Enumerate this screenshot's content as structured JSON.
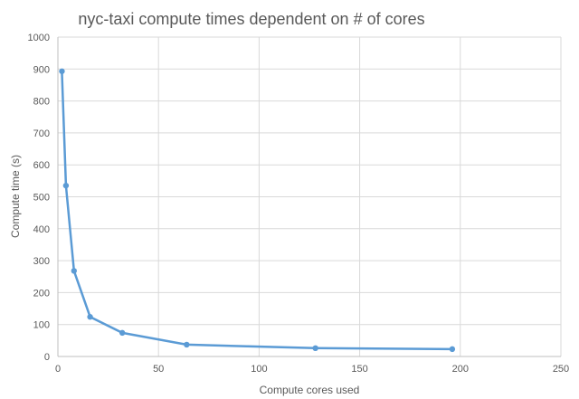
{
  "chart_data": {
    "type": "scatter",
    "title": "nyc-taxi compute times dependent on # of cores",
    "xlabel": "Compute cores used",
    "ylabel": "Compute time (s)",
    "xlim": [
      0,
      250
    ],
    "ylim": [
      0,
      1000
    ],
    "xticks": [
      0,
      50,
      100,
      150,
      200,
      250
    ],
    "yticks": [
      0,
      100,
      200,
      300,
      400,
      500,
      600,
      700,
      800,
      900,
      1000
    ],
    "grid": true,
    "legend": "none",
    "line_style": "straight lines with markers",
    "color": "#5b9bd5",
    "series": [
      {
        "x": [
          2,
          4,
          8,
          16,
          32,
          64,
          128,
          196
        ],
        "y": [
          893,
          535,
          268,
          124,
          74,
          37,
          26,
          23
        ]
      }
    ]
  }
}
